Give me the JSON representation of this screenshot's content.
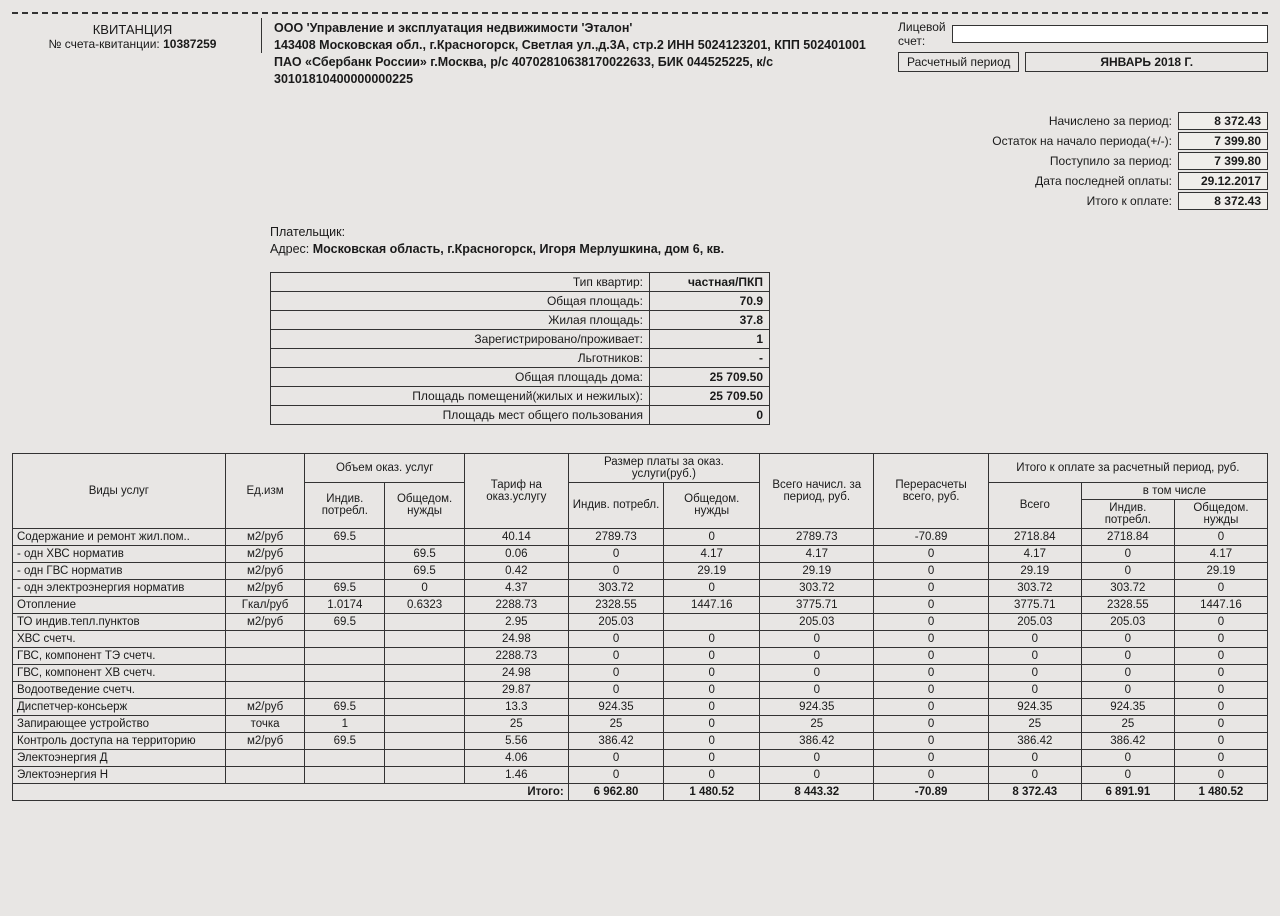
{
  "header": {
    "receipt_title": "КВИТАНЦИЯ",
    "receipt_no_label": "№ счета-квитанции:",
    "receipt_no": "10387259",
    "company_line1": "ООО 'Управление и эксплуатация недвижимости 'Эталон'",
    "company_line2": "143408 Московская обл., г.Красногорск, Светлая ул.,д.3А, стр.2 ИНН 5024123201, КПП 502401001 ПАО «Сбербанк России» г.Москва, р/с 40702810638170022633, БИК 044525225, к/с 30101810400000000225",
    "account_label1": "Лицевой",
    "account_label2": "счет:",
    "period_label": "Расчетный период",
    "period_value": "ЯНВАРЬ 2018 Г."
  },
  "payer": {
    "label": "Плательщик:",
    "addr_label": "Адрес:",
    "addr_value": "Московская область, г.Красногорск, Игоря Мерлушкина, дом 6, кв."
  },
  "summary": {
    "rows": [
      {
        "label": "Начислено за период:",
        "value": "8 372.43"
      },
      {
        "label": "Остаток на начало периода(+/-):",
        "value": "7 399.80"
      },
      {
        "label": "Поступило за период:",
        "value": "7 399.80"
      },
      {
        "label": "Дата последней оплаты:",
        "value": "29.12.2017"
      },
      {
        "label": "Итого к оплате:",
        "value": "8 372.43"
      }
    ]
  },
  "apt": {
    "rows": [
      {
        "label": "Тип квартир:",
        "value": "частная/ПКП"
      },
      {
        "label": "Общая площадь:",
        "value": "70.9"
      },
      {
        "label": "Жилая площадь:",
        "value": "37.8"
      },
      {
        "label": "Зарегистрировано/проживает:",
        "value": "1"
      },
      {
        "label": "Льготников:",
        "value": "-"
      },
      {
        "label": "Общая площадь дома:",
        "value": "25 709.50"
      },
      {
        "label": "Площадь помещений(жилых и нежилых):",
        "value": "25 709.50"
      },
      {
        "label": "Площадь мест общего пользования",
        "value": "0"
      }
    ]
  },
  "tableHead": {
    "svc": "Виды услуг",
    "unit": "Ед.изм",
    "vol_group": "Объем оказ. услуг",
    "vol_ind": "Индив. потребл.",
    "vol_com": "Общедом. нужды",
    "tariff": "Тариф на оказ.услугу",
    "pay_group": "Размер платы за оказ. услуги(руб.)",
    "pay_ind": "Индив. потребл.",
    "pay_com": "Общедом. нужды",
    "charged": "Всего начисл. за период, руб.",
    "recalc": "Перерасчеты всего, руб.",
    "total_group": "Итого к оплате за расчетный период, руб.",
    "total_all": "Всего",
    "total_sub": "в том числе",
    "total_ind": "Индив. потребл.",
    "total_com": "Общедом. нужды"
  },
  "services": [
    {
      "name": "Содержание и ремонт жил.пом..",
      "unit": "м2/руб",
      "vi": "69.5",
      "vc": "",
      "tar": "40.14",
      "pi": "2789.73",
      "pc": "0",
      "chg": "2789.73",
      "rec": "-70.89",
      "ta": "2718.84",
      "ti": "2718.84",
      "tc": "0"
    },
    {
      "name": "- одн ХВС норматив",
      "unit": "м2/руб",
      "vi": "",
      "vc": "69.5",
      "tar": "0.06",
      "pi": "0",
      "pc": "4.17",
      "chg": "4.17",
      "rec": "0",
      "ta": "4.17",
      "ti": "0",
      "tc": "4.17"
    },
    {
      "name": "- одн ГВС норматив",
      "unit": "м2/руб",
      "vi": "",
      "vc": "69.5",
      "tar": "0.42",
      "pi": "0",
      "pc": "29.19",
      "chg": "29.19",
      "rec": "0",
      "ta": "29.19",
      "ti": "0",
      "tc": "29.19"
    },
    {
      "name": "- одн электроэнергия норматив",
      "unit": "м2/руб",
      "vi": "69.5",
      "vc": "0",
      "tar": "4.37",
      "pi": "303.72",
      "pc": "0",
      "chg": "303.72",
      "rec": "0",
      "ta": "303.72",
      "ti": "303.72",
      "tc": "0"
    },
    {
      "name": "Отопление",
      "unit": "Гкал/руб",
      "vi": "1.0174",
      "vc": "0.6323",
      "tar": "2288.73",
      "pi": "2328.55",
      "pc": "1447.16",
      "chg": "3775.71",
      "rec": "0",
      "ta": "3775.71",
      "ti": "2328.55",
      "tc": "1447.16"
    },
    {
      "name": "ТО индив.тепл.пунктов",
      "unit": "м2/руб",
      "vi": "69.5",
      "vc": "",
      "tar": "2.95",
      "pi": "205.03",
      "pc": "",
      "chg": "205.03",
      "rec": "0",
      "ta": "205.03",
      "ti": "205.03",
      "tc": "0"
    },
    {
      "name": "ХВС счетч.",
      "unit": "",
      "vi": "",
      "vc": "",
      "tar": "24.98",
      "pi": "0",
      "pc": "0",
      "chg": "0",
      "rec": "0",
      "ta": "0",
      "ti": "0",
      "tc": "0"
    },
    {
      "name": "ГВС, компонент ТЭ счетч.",
      "unit": "",
      "vi": "",
      "vc": "",
      "tar": "2288.73",
      "pi": "0",
      "pc": "0",
      "chg": "0",
      "rec": "0",
      "ta": "0",
      "ti": "0",
      "tc": "0"
    },
    {
      "name": "ГВС, компонент ХВ счетч.",
      "unit": "",
      "vi": "",
      "vc": "",
      "tar": "24.98",
      "pi": "0",
      "pc": "0",
      "chg": "0",
      "rec": "0",
      "ta": "0",
      "ti": "0",
      "tc": "0"
    },
    {
      "name": "Водоотведение счетч.",
      "unit": "",
      "vi": "",
      "vc": "",
      "tar": "29.87",
      "pi": "0",
      "pc": "0",
      "chg": "0",
      "rec": "0",
      "ta": "0",
      "ti": "0",
      "tc": "0"
    },
    {
      "name": "Диспетчер-консьерж",
      "unit": "м2/руб",
      "vi": "69.5",
      "vc": "",
      "tar": "13.3",
      "pi": "924.35",
      "pc": "0",
      "chg": "924.35",
      "rec": "0",
      "ta": "924.35",
      "ti": "924.35",
      "tc": "0"
    },
    {
      "name": "Запирающее устройство",
      "unit": "точка",
      "vi": "1",
      "vc": "",
      "tar": "25",
      "pi": "25",
      "pc": "0",
      "chg": "25",
      "rec": "0",
      "ta": "25",
      "ti": "25",
      "tc": "0"
    },
    {
      "name": "Контроль доступа на территорию",
      "unit": "м2/руб",
      "vi": "69.5",
      "vc": "",
      "tar": "5.56",
      "pi": "386.42",
      "pc": "0",
      "chg": "386.42",
      "rec": "0",
      "ta": "386.42",
      "ti": "386.42",
      "tc": "0"
    },
    {
      "name": "Электоэнергия Д",
      "unit": "",
      "vi": "",
      "vc": "",
      "tar": "4.06",
      "pi": "0",
      "pc": "0",
      "chg": "0",
      "rec": "0",
      "ta": "0",
      "ti": "0",
      "tc": "0"
    },
    {
      "name": "Электоэнергия Н",
      "unit": "",
      "vi": "",
      "vc": "",
      "tar": "1.46",
      "pi": "0",
      "pc": "0",
      "chg": "0",
      "rec": "0",
      "ta": "0",
      "ti": "0",
      "tc": "0"
    }
  ],
  "totals": {
    "label": "Итого:",
    "pi": "6 962.80",
    "pc": "1 480.52",
    "chg": "8 443.32",
    "rec": "-70.89",
    "ta": "8 372.43",
    "ti": "6 891.91",
    "tc": "1 480.52"
  }
}
